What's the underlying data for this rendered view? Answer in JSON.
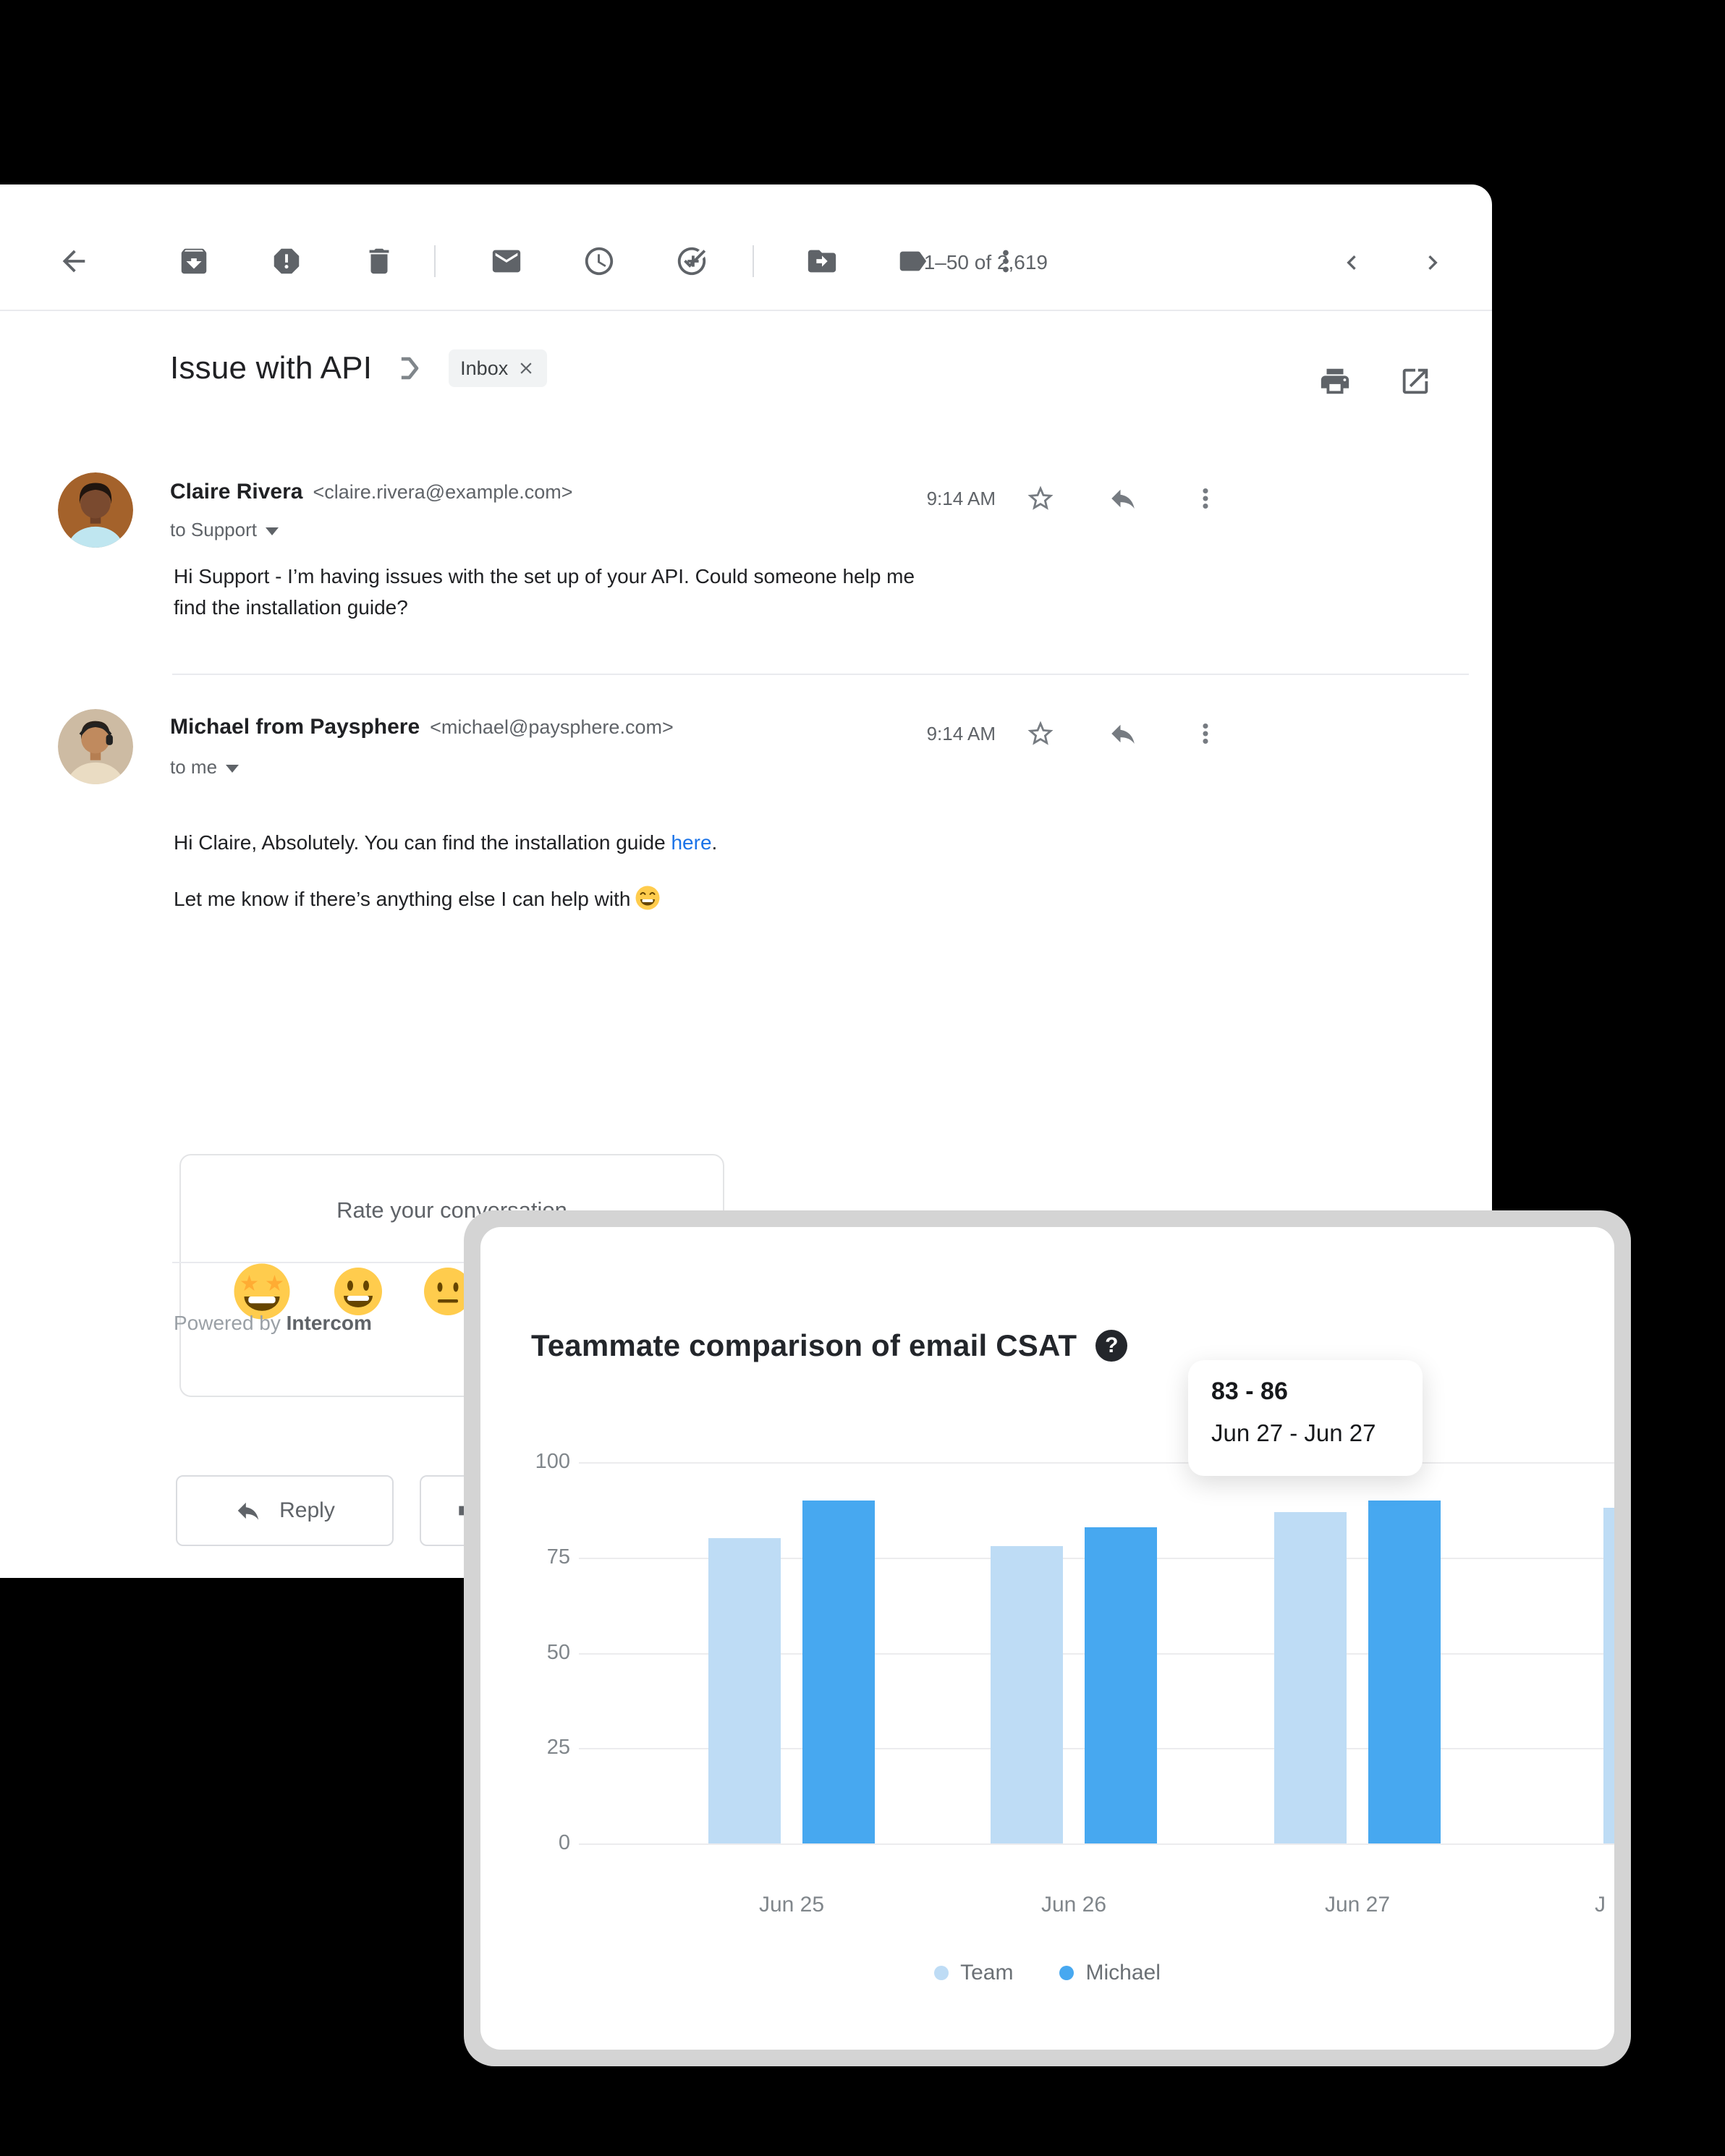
{
  "toolbar": {
    "pagination": "1–50 of 2,619",
    "icons": [
      "back-icon",
      "archive-icon",
      "report-spam-icon",
      "delete-icon",
      "mark-unread-icon",
      "snooze-icon",
      "add-to-tasks-icon",
      "move-to-icon",
      "labels-icon",
      "more-icon"
    ],
    "nav_icons": [
      "chevron-left-icon",
      "chevron-right-icon"
    ]
  },
  "subject": {
    "title": "Issue with API",
    "label": "Inbox"
  },
  "messages": [
    {
      "sender": "Claire Rivera",
      "email": "<claire.rivera@example.com>",
      "recipient": "to Support",
      "time": "9:14 AM",
      "body_lines": [
        "Hi Support - I’m having issues with the set up of your API. Could someone help me",
        "find the installation guide?"
      ]
    },
    {
      "sender": "Michael from Paysphere",
      "email": "<michael@paysphere.com>",
      "recipient": "to me",
      "time": "9:14 AM",
      "body1_prefix": "Hi Claire, Absolutely. You can find the installation guide ",
      "body1_link": "here",
      "body1_suffix": ".",
      "body2": "Let me know if there’s anything else I can help with",
      "body2_emoji": "grinning-face-emoji"
    }
  ],
  "rating_card": {
    "title": "Rate your conversation",
    "emojis": [
      "star-struck-emoji",
      "grinning-emoji",
      "neutral-emoji",
      "frowning-emoji",
      "angry-emoji"
    ]
  },
  "footer": {
    "powered_by": "Powered by",
    "brand": "Intercom",
    "reply_label": "Reply"
  },
  "chart_card": {
    "help_glyph": "?"
  },
  "colors": {
    "team": "#BEDCF5",
    "michael": "#47A8F0",
    "link": "#1a73e8",
    "icon_gray": "#5f6368"
  },
  "chart_data": {
    "type": "bar",
    "title": "Teammate comparison of email CSAT",
    "categories": [
      "Jun 25",
      "Jun 26",
      "Jun 27"
    ],
    "partial_next_category": "J",
    "series": [
      {
        "name": "Team",
        "color": "#BEDCF5",
        "values": [
          80,
          78,
          87
        ]
      },
      {
        "name": "Michael",
        "color": "#47A8F0",
        "values": [
          90,
          83,
          90
        ]
      }
    ],
    "partial_next_bar": {
      "series": "Team",
      "value": 88
    },
    "ylim": [
      0,
      100
    ],
    "yticks": [
      100,
      75,
      50,
      25,
      0
    ],
    "grid": true,
    "legend_position": "bottom",
    "tooltip": {
      "value_text": "83 - 86",
      "range_text": "Jun 27 - Jun 27",
      "anchor_category": "Jun 27",
      "anchor_series": "Team"
    }
  }
}
